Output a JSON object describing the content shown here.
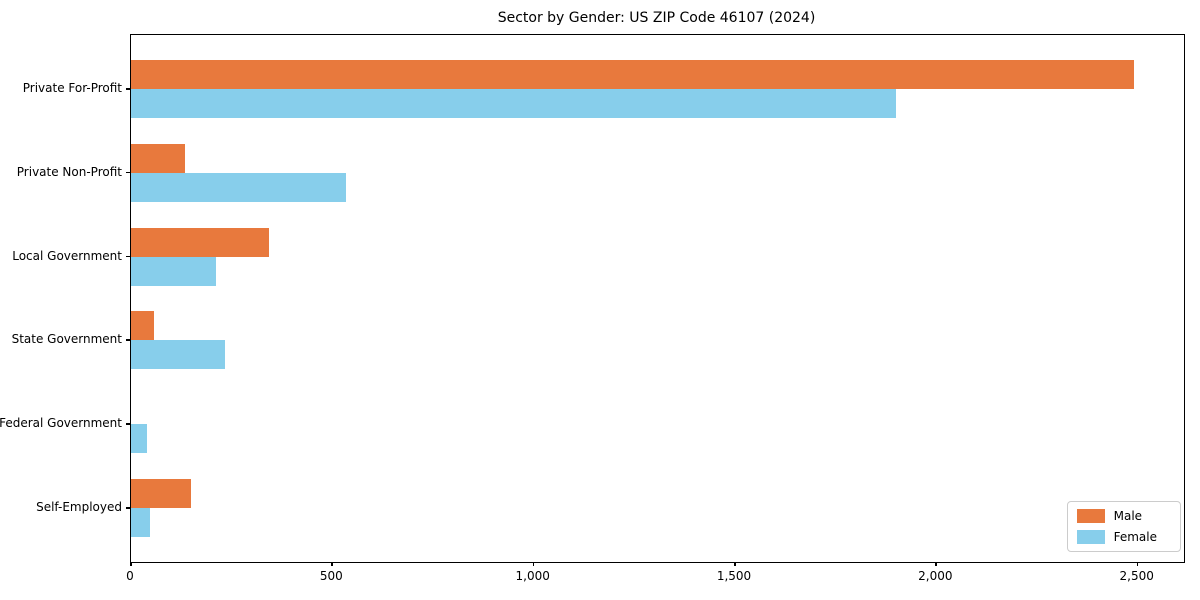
{
  "chart_data": {
    "type": "bar",
    "orientation": "horizontal",
    "title": "Sector by Gender: US ZIP Code 46107 (2024)",
    "categories": [
      "Private For-Profit",
      "Private Non-Profit",
      "Local Government",
      "State Government",
      "Federal Government",
      "Self-Employed"
    ],
    "series": [
      {
        "name": "Male",
        "color": "#E8793D",
        "values": [
          2490,
          134,
          343,
          57,
          0,
          149
        ]
      },
      {
        "name": "Female",
        "color": "#87CEEB",
        "values": [
          1900,
          534,
          211,
          233,
          39,
          47
        ]
      }
    ],
    "xlabel": "",
    "ylabel": "",
    "xlim": [
      0,
      2615
    ],
    "xticks": [
      0,
      500,
      1000,
      1500,
      2000,
      2500
    ],
    "xtick_labels": [
      "0",
      "500",
      "1,000",
      "1,500",
      "2,000",
      "2,500"
    ],
    "grid": false,
    "legend_position": "lower right",
    "colors": {
      "male": "#E8793D",
      "female": "#87CEEB",
      "spine": "#000000",
      "legend_border": "#cccccc",
      "background": "#ffffff"
    }
  }
}
